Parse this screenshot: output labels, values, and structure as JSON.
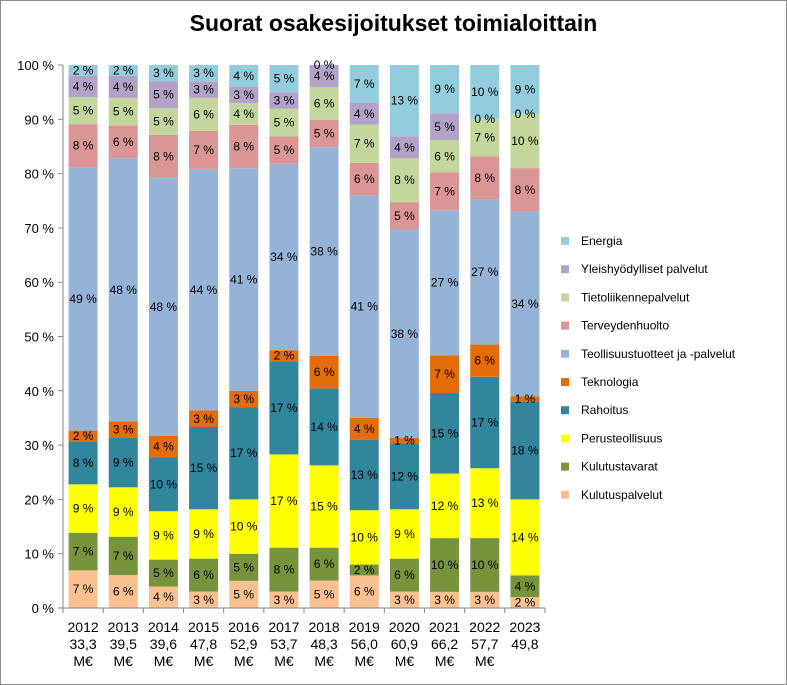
{
  "chart_data": {
    "type": "bar",
    "stacked": true,
    "title": "Suorat osakesijoitukset toimialoittain",
    "categories": [
      [
        "2012",
        "33,3",
        "M€"
      ],
      [
        "2013",
        "39,5",
        "M€"
      ],
      [
        "2014",
        "39,6",
        "M€"
      ],
      [
        "2015",
        "47,8",
        "M€"
      ],
      [
        "2016",
        "52,9",
        "M€"
      ],
      [
        "2017",
        "53,7",
        "M€"
      ],
      [
        "2018",
        "48,3",
        "M€"
      ],
      [
        "2019",
        "56,0",
        "M€"
      ],
      [
        "2020",
        "60,9",
        "M€"
      ],
      [
        "2021",
        "66,2",
        "M€"
      ],
      [
        "2022",
        "57,7",
        "M€"
      ],
      [
        "2023",
        "49,8",
        ""
      ]
    ],
    "y_ticks": [
      "0 %",
      "10 %",
      "20 %",
      "30 %",
      "40 %",
      "50 %",
      "60 %",
      "70 %",
      "80 %",
      "90 %",
      "100 %"
    ],
    "ylim": [
      0,
      100
    ],
    "grid": false,
    "legend_position": "right",
    "series": [
      {
        "name": "Kulutuspalvelut",
        "color": "#fac090",
        "values": [
          7,
          6,
          4,
          3,
          5,
          3,
          5,
          6,
          3,
          3,
          3,
          2
        ]
      },
      {
        "name": "Kulutustavarat",
        "color": "#77933c",
        "values": [
          7,
          7,
          5,
          6,
          5,
          8,
          6,
          2,
          6,
          10,
          10,
          4
        ]
      },
      {
        "name": "Perusteollisuus",
        "color": "#ffff00",
        "values": [
          9,
          9,
          9,
          9,
          10,
          17,
          15,
          10,
          9,
          12,
          13,
          14
        ]
      },
      {
        "name": "Rahoitus",
        "color": "#31859c",
        "values": [
          8,
          9,
          10,
          15,
          17,
          17,
          14,
          13,
          12,
          15,
          17,
          18
        ]
      },
      {
        "name": "Teknologia",
        "color": "#e46c0a",
        "values": [
          2,
          3,
          4,
          3,
          3,
          2,
          6,
          4,
          1,
          7,
          6,
          1
        ]
      },
      {
        "name": "Teollisuustuotteet ja -palvelut",
        "color": "#95b3d7",
        "values": [
          49,
          48,
          48,
          44,
          41,
          34,
          38,
          41,
          38,
          27,
          27,
          34
        ]
      },
      {
        "name": "Terveydenhuolto",
        "color": "#d99694",
        "values": [
          8,
          6,
          8,
          7,
          8,
          5,
          5,
          6,
          5,
          7,
          8,
          8
        ]
      },
      {
        "name": "Tietoliikennepalvelut",
        "color": "#c3d69b",
        "values": [
          5,
          5,
          5,
          6,
          4,
          5,
          6,
          7,
          8,
          6,
          7,
          10
        ]
      },
      {
        "name": "Yleishyödylliset palvelut",
        "color": "#b3a2c7",
        "values": [
          4,
          4,
          5,
          3,
          3,
          3,
          4,
          4,
          4,
          5,
          0,
          0
        ]
      },
      {
        "name": "Energia",
        "color": "#93cddd",
        "values": [
          2,
          2,
          3,
          3,
          4,
          5,
          0,
          7,
          13,
          9,
          10,
          9
        ]
      }
    ]
  }
}
